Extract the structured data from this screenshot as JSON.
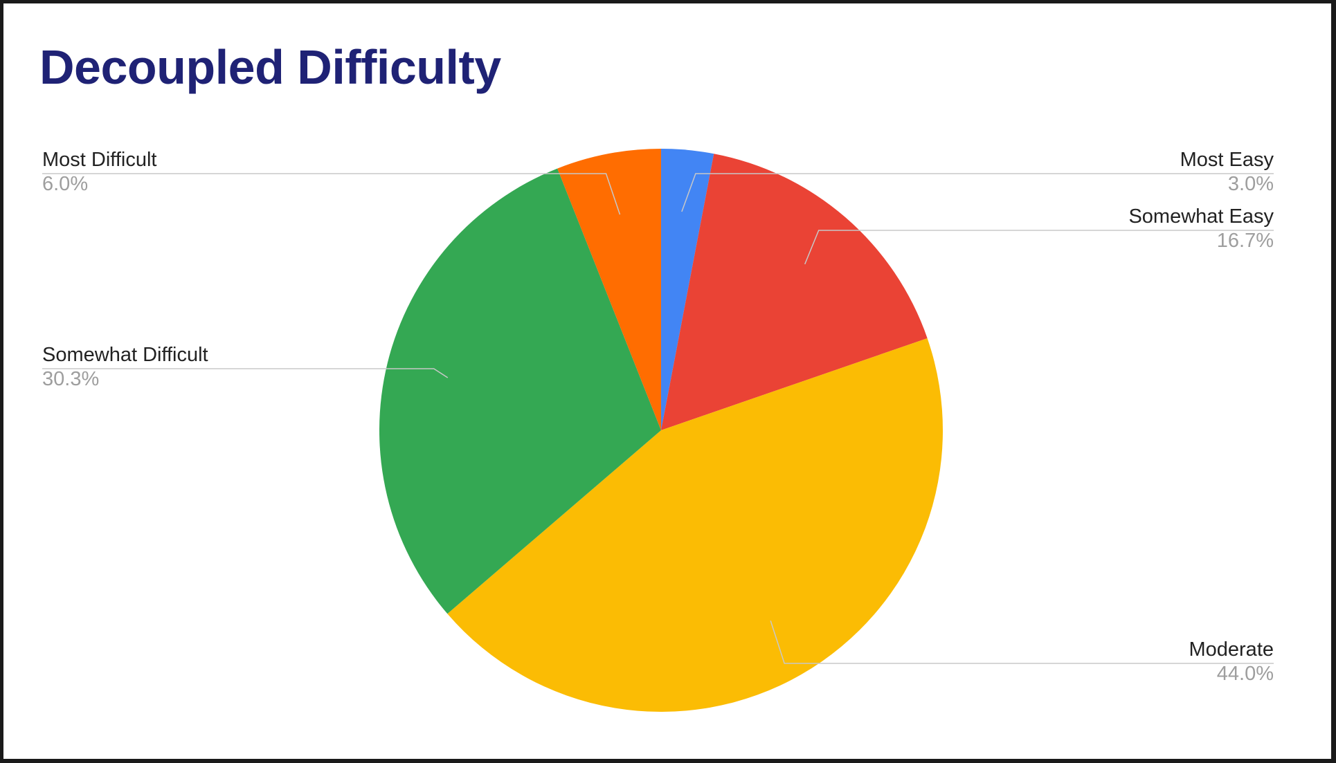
{
  "slide": {
    "title": "Decoupled Difficulty"
  },
  "chart_data": {
    "type": "pie",
    "title": "Decoupled Difficulty",
    "start_angle_deg": 0,
    "direction": "clockwise",
    "legend": "labels beside slices",
    "slices": [
      {
        "name": "Most Easy",
        "value": 3.0,
        "display": "3.0%",
        "color": "#4285f4",
        "side": "right"
      },
      {
        "name": "Somewhat Easy",
        "value": 16.7,
        "display": "16.7%",
        "color": "#ea4335",
        "side": "right"
      },
      {
        "name": "Moderate",
        "value": 44.0,
        "display": "44.0%",
        "color": "#fbbc04",
        "side": "right"
      },
      {
        "name": "Somewhat Difficult",
        "value": 30.3,
        "display": "30.3%",
        "color": "#34a853",
        "side": "left"
      },
      {
        "name": "Most Difficult",
        "value": 6.0,
        "display": "6.0%",
        "color": "#ff6d01",
        "side": "left"
      }
    ]
  }
}
